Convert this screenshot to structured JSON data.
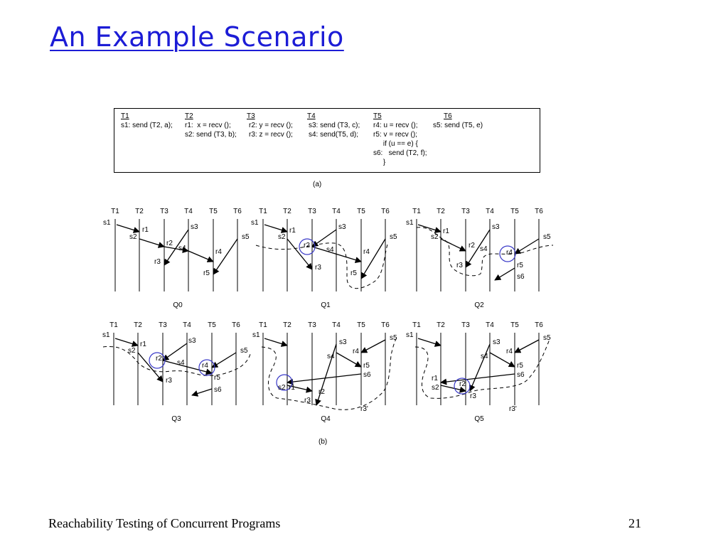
{
  "title": "An Example Scenario",
  "code": {
    "threads": [
      "T1",
      "T2",
      "T3",
      "T4",
      "T5",
      "T6"
    ],
    "columns": [
      [
        "s1: send (T2, a);"
      ],
      [
        "r1:  x = recv ();",
        "s2: send (T3, b);"
      ],
      [
        "r2: y = recv ();",
        "r3: z = recv ();"
      ],
      [
        "s3: send (T3, c);",
        "s4: send(T5, d);"
      ],
      [
        "r4: u = recv ();",
        "r5: v = recv ();",
        "     if (u == e) {",
        "s6:   send (T2, f);",
        "     }"
      ],
      [
        "s5: send (T5, e)"
      ]
    ]
  },
  "caption_a": "(a)",
  "caption_b": "(b)",
  "footer_left": "Reachability Testing of Concurrent Programs",
  "page_number": "21",
  "panels": [
    {
      "name": "Q0",
      "threads": [
        "T1",
        "T2",
        "T3",
        "T4",
        "T5",
        "T6"
      ],
      "labels": [
        "s1",
        "r1",
        "s2",
        "r2",
        "r3",
        "s3",
        "s4",
        "r4",
        "s5",
        "r5"
      ]
    },
    {
      "name": "Q1",
      "threads": [
        "T1",
        "T2",
        "T3",
        "T4",
        "T5",
        "T6"
      ],
      "labels": [
        "s1",
        "r1",
        "s2",
        "r2",
        "r3",
        "s3",
        "s4",
        "r4",
        "s5",
        "r5"
      ]
    },
    {
      "name": "Q2",
      "threads": [
        "T1",
        "T2",
        "T3",
        "T4",
        "T5",
        "T6"
      ],
      "labels": [
        "s1",
        "r1",
        "s2",
        "r2",
        "r3",
        "s3",
        "s4",
        "r4",
        "r5",
        "s5",
        "s6"
      ]
    },
    {
      "name": "Q3",
      "threads": [
        "T1",
        "T2",
        "T3",
        "T4",
        "T5",
        "T6"
      ],
      "labels": [
        "s1",
        "r1",
        "s2",
        "r2",
        "r3",
        "s3",
        "s4",
        "r4",
        "r5",
        "s5",
        "s6"
      ]
    },
    {
      "name": "Q4",
      "threads": [
        "T1",
        "T2",
        "T3",
        "T4",
        "T5",
        "T6"
      ],
      "labels": [
        "s1",
        "r1",
        "s2",
        "r2",
        "r3",
        "s3",
        "s4",
        "r4",
        "r5",
        "s6",
        "s5",
        "r3'"
      ]
    },
    {
      "name": "Q5",
      "threads": [
        "T1",
        "T2",
        "T3",
        "T4",
        "T5",
        "T6"
      ],
      "labels": [
        "s1",
        "r1",
        "s2",
        "r2",
        "r3",
        "s3",
        "s4",
        "r4",
        "r5",
        "s6",
        "s5",
        "r3'"
      ]
    }
  ],
  "colors": {
    "title": "#1c1cd6",
    "circle": "#3a3ac8"
  }
}
